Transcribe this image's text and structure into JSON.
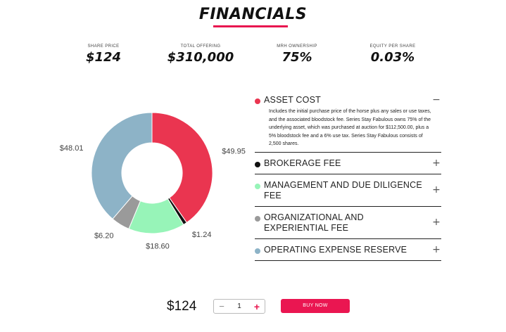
{
  "page": {
    "title": "FINANCIALS"
  },
  "stats": [
    {
      "label": "SHARE PRICE",
      "value": "$124"
    },
    {
      "label": "TOTAL OFFERING",
      "value": "$310,000"
    },
    {
      "label": "MRH OWNERSHIP",
      "value": "75%"
    },
    {
      "label": "EQUITY PER SHARE",
      "value": "0.03%"
    }
  ],
  "colors": {
    "accent": "#ea1651",
    "asset_cost": "#ea3550",
    "brokerage_fee": "#111111",
    "management_fee": "#97f4b8",
    "organizational_fee": "#9a9a9a",
    "operating_reserve": "#8db3c7"
  },
  "chart_data": {
    "type": "pie",
    "donut": true,
    "categories": [
      "ASSET COST",
      "BROKERAGE FEE",
      "MANAGEMENT AND DUE DILIGENCE FEE",
      "ORGANIZATIONAL AND EXPERIENTIAL FEE",
      "OPERATING EXPENSE RESERVE"
    ],
    "values": [
      49.95,
      1.24,
      18.6,
      6.2,
      48.01
    ],
    "labels": [
      "$49.95",
      "$1.24",
      "$18.60",
      "$6.20",
      "$48.01"
    ],
    "colors": [
      "#ea3550",
      "#111111",
      "#97f4b8",
      "#9a9a9a",
      "#8db3c7"
    ]
  },
  "accordion": [
    {
      "title": "ASSET COST",
      "toggle": "−",
      "expanded": true,
      "color": "#ea3550",
      "body": "Includes the initial purchase price of the horse plus any sales or use taxes, and the associated bloodstock fee. Series Stay Fabulous owns 75% of the underlying asset, which was purchased at auction for $112,500.00, plus a 5% bloodstock fee and a 6% use tax. Series Stay Fabulous consists of 2,500 shares."
    },
    {
      "title": "BROKERAGE FEE",
      "toggle": "+",
      "expanded": false,
      "color": "#111111"
    },
    {
      "title": "MANAGEMENT AND DUE DILIGENCE FEE",
      "toggle": "+",
      "expanded": false,
      "color": "#97f4b8"
    },
    {
      "title": "ORGANIZATIONAL AND EXPERIENTIAL FEE",
      "toggle": "+",
      "expanded": false,
      "color": "#9a9a9a"
    },
    {
      "title": "OPERATING EXPENSE RESERVE",
      "toggle": "+",
      "expanded": false,
      "color": "#8db3c7"
    }
  ],
  "purchase": {
    "price": "$124",
    "quantity": "1",
    "minus": "−",
    "plus": "+",
    "buy_label": "BUY NOW"
  }
}
